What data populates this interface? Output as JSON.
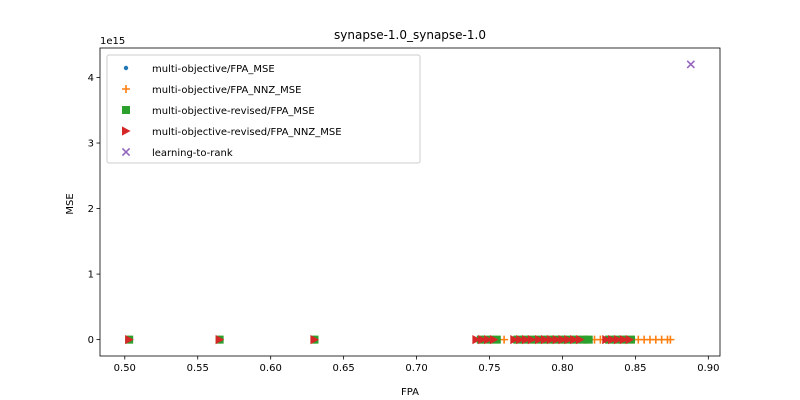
{
  "chart_data": {
    "type": "scatter",
    "title": "synapse-1.0_synapse-1.0",
    "xlabel": "FPA",
    "ylabel": "MSE",
    "y_offset_text": "1e15",
    "xlim": [
      0.483,
      0.908
    ],
    "ylim": [
      -0.25,
      4.45
    ],
    "y_unit_scale": 1000000000000000.0,
    "x_ticks": [
      0.5,
      0.55,
      0.6,
      0.65,
      0.7,
      0.75,
      0.8,
      0.85,
      0.9
    ],
    "x_tick_labels": [
      "0.50",
      "0.55",
      "0.60",
      "0.65",
      "0.70",
      "0.75",
      "0.80",
      "0.85",
      "0.90"
    ],
    "y_ticks": [
      0,
      1,
      2,
      3,
      4
    ],
    "y_tick_labels": [
      "0",
      "1",
      "2",
      "3",
      "4"
    ],
    "grid": false,
    "legend_position": "upper-left",
    "series": [
      {
        "name": "multi-objective/FPA_MSE",
        "marker": "point",
        "color": "#1f77b4",
        "points": [
          [
            0.503,
            0
          ],
          [
            0.565,
            0
          ],
          [
            0.63,
            0
          ],
          [
            0.742,
            0
          ],
          [
            0.748,
            0
          ],
          [
            0.755,
            0
          ],
          [
            0.768,
            0
          ],
          [
            0.775,
            0
          ],
          [
            0.782,
            0
          ],
          [
            0.79,
            0
          ],
          [
            0.798,
            0
          ],
          [
            0.805,
            0
          ],
          [
            0.812,
            0
          ],
          [
            0.832,
            0
          ],
          [
            0.838,
            0
          ],
          [
            0.845,
            0
          ]
        ]
      },
      {
        "name": "multi-objective/FPA_NNZ_MSE",
        "marker": "plus",
        "color": "#ff7f0e",
        "points": [
          [
            0.503,
            0
          ],
          [
            0.565,
            0
          ],
          [
            0.63,
            0
          ],
          [
            0.745,
            0
          ],
          [
            0.76,
            0
          ],
          [
            0.78,
            0
          ],
          [
            0.8,
            0
          ],
          [
            0.815,
            0
          ],
          [
            0.822,
            0
          ],
          [
            0.826,
            0
          ],
          [
            0.83,
            0
          ],
          [
            0.836,
            0
          ],
          [
            0.842,
            0
          ],
          [
            0.848,
            0
          ],
          [
            0.852,
            0
          ],
          [
            0.856,
            0
          ],
          [
            0.86,
            0
          ],
          [
            0.864,
            0
          ],
          [
            0.868,
            0
          ],
          [
            0.872,
            0
          ],
          [
            0.874,
            0
          ]
        ]
      },
      {
        "name": "multi-objective-revised/FPA_MSE",
        "marker": "square",
        "color": "#2ca02c",
        "points": [
          [
            0.503,
            0
          ],
          [
            0.565,
            0
          ],
          [
            0.63,
            0
          ],
          [
            0.744,
            0
          ],
          [
            0.75,
            0
          ],
          [
            0.755,
            0
          ],
          [
            0.769,
            0
          ],
          [
            0.774,
            0
          ],
          [
            0.779,
            0
          ],
          [
            0.785,
            0
          ],
          [
            0.79,
            0
          ],
          [
            0.795,
            0
          ],
          [
            0.8,
            0
          ],
          [
            0.805,
            0
          ],
          [
            0.81,
            0
          ],
          [
            0.815,
            0
          ],
          [
            0.818,
            0
          ],
          [
            0.832,
            0
          ],
          [
            0.837,
            0
          ],
          [
            0.842,
            0
          ],
          [
            0.847,
            0
          ]
        ]
      },
      {
        "name": "multi-objective-revised/FPA_NNZ_MSE",
        "marker": "triangle-right",
        "color": "#d62728",
        "points": [
          [
            0.503,
            0
          ],
          [
            0.565,
            0
          ],
          [
            0.63,
            0
          ],
          [
            0.741,
            0
          ],
          [
            0.745,
            0
          ],
          [
            0.749,
            0
          ],
          [
            0.753,
            0
          ],
          [
            0.767,
            0
          ],
          [
            0.771,
            0
          ],
          [
            0.775,
            0
          ],
          [
            0.779,
            0
          ],
          [
            0.784,
            0
          ],
          [
            0.788,
            0
          ],
          [
            0.792,
            0
          ],
          [
            0.796,
            0
          ],
          [
            0.8,
            0
          ],
          [
            0.804,
            0
          ],
          [
            0.808,
            0
          ],
          [
            0.812,
            0
          ],
          [
            0.83,
            0
          ],
          [
            0.834,
            0
          ],
          [
            0.838,
            0
          ],
          [
            0.842,
            0
          ],
          [
            0.846,
            0
          ]
        ]
      },
      {
        "name": "learning-to-rank",
        "marker": "x",
        "color": "#9467bd",
        "points": [
          [
            0.888,
            4.2
          ]
        ]
      }
    ]
  }
}
